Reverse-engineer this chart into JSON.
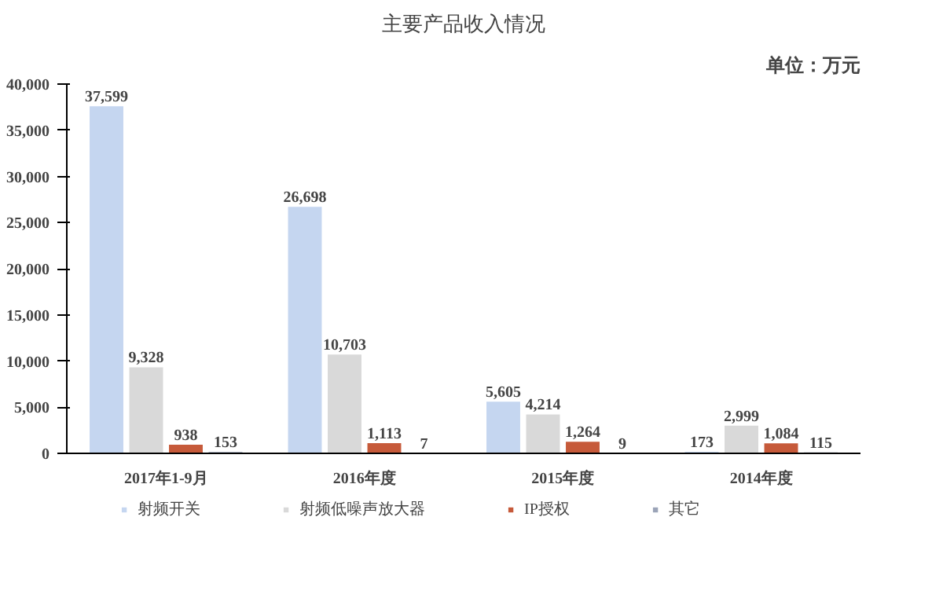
{
  "chart_data": {
    "type": "bar",
    "title": "主要产品收入情况",
    "annotations": [
      "单位：万元"
    ],
    "categories": [
      "2017年1-9月",
      "2016年度",
      "2015年度",
      "2014年度"
    ],
    "series": [
      {
        "name": "射频开关",
        "color": "#c5d6f0",
        "values": [
          37599,
          26698,
          5605,
          173
        ],
        "value_labels": [
          "37,599",
          "26,698",
          "5,605",
          "173"
        ]
      },
      {
        "name": "射频低噪声放大器",
        "color": "#d9d9d9",
        "values": [
          9328,
          10703,
          4214,
          2999
        ],
        "value_labels": [
          "9,328",
          "10,703",
          "4,214",
          "2,999"
        ]
      },
      {
        "name": "IP授权",
        "color": "#c65a3a",
        "values": [
          938,
          1113,
          1264,
          1084
        ],
        "value_labels": [
          "938",
          "1,113",
          "1,264",
          "1,084"
        ]
      },
      {
        "name": "其它",
        "color": "#9ba4b8",
        "values": [
          153,
          7,
          9,
          115
        ],
        "value_labels": [
          "153",
          "7",
          "9",
          "115"
        ]
      }
    ],
    "ylim": [
      0,
      40000
    ],
    "yticks": [
      {
        "value": 0,
        "label": "0"
      },
      {
        "value": 5000,
        "label": "5,000"
      },
      {
        "value": 10000,
        "label": "10,000"
      },
      {
        "value": 15000,
        "label": "15,000"
      },
      {
        "value": 20000,
        "label": "20,000"
      },
      {
        "value": 25000,
        "label": "25,000"
      },
      {
        "value": 30000,
        "label": "30,000"
      },
      {
        "value": 35000,
        "label": "35,000"
      },
      {
        "value": 40000,
        "label": "40,000"
      }
    ],
    "legend": "bottom"
  }
}
